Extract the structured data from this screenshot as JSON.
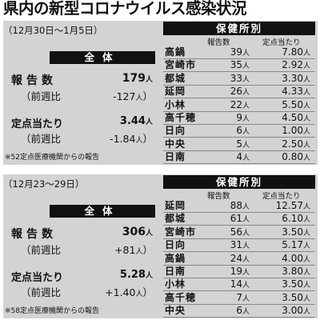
{
  "title": "県内の新型コロナウイルス感染状況",
  "unit_nin": "人",
  "section1": {
    "period": "（12月30日～1月5日）",
    "zentai": "全体",
    "report_label": "報告数",
    "report_value": "179",
    "report_change_label": "（前週比",
    "report_change": "-127",
    "rate_label": "定点当たり",
    "rate_value": "3.44",
    "rate_change_label": "（前週比",
    "rate_change": "-1.84",
    "note": "※52定点医療機関からの報告",
    "hoken_title": "保健所別",
    "col_count": "報告数",
    "col_rate": "定点当たり",
    "rows": [
      {
        "name": "高鍋",
        "count": "39",
        "rate": "7.80"
      },
      {
        "name": "宮崎市",
        "count": "35",
        "rate": "2.92"
      },
      {
        "name": "都城",
        "count": "33",
        "rate": "3.30"
      },
      {
        "name": "延岡",
        "count": "26",
        "rate": "4.33"
      },
      {
        "name": "小林",
        "count": "22",
        "rate": "5.50"
      },
      {
        "name": "高千穂",
        "count": "9",
        "rate": "4.50"
      },
      {
        "name": "日向",
        "count": "6",
        "rate": "1.00"
      },
      {
        "name": "中央",
        "count": "5",
        "rate": "2.50"
      },
      {
        "name": "日南",
        "count": "4",
        "rate": "0.80"
      }
    ]
  },
  "section2": {
    "period": "（12月23～29日）",
    "zentai": "全体",
    "report_label": "報告数",
    "report_value": "306",
    "report_change_label": "（前週比",
    "report_change": "+81",
    "rate_label": "定点当たり",
    "rate_value": "5.28",
    "rate_change_label": "（前週比",
    "rate_change": "+1.40",
    "note": "※58定点医療機関からの報告",
    "hoken_title": "保健所別",
    "col_count": "報告数",
    "col_rate": "定点当たり",
    "rows": [
      {
        "name": "延岡",
        "count": "88",
        "rate": "12.57"
      },
      {
        "name": "都城",
        "count": "61",
        "rate": "6.10"
      },
      {
        "name": "宮崎市",
        "count": "56",
        "rate": "3.50"
      },
      {
        "name": "日向",
        "count": "31",
        "rate": "5.17"
      },
      {
        "name": "高鍋",
        "count": "24",
        "rate": "4.00"
      },
      {
        "name": "日南",
        "count": "19",
        "rate": "3.80"
      },
      {
        "name": "小林",
        "count": "14",
        "rate": "3.50"
      },
      {
        "name": "高千穂",
        "count": "7",
        "rate": "3.50"
      },
      {
        "name": "中央",
        "count": "6",
        "rate": "3.00"
      }
    ]
  }
}
